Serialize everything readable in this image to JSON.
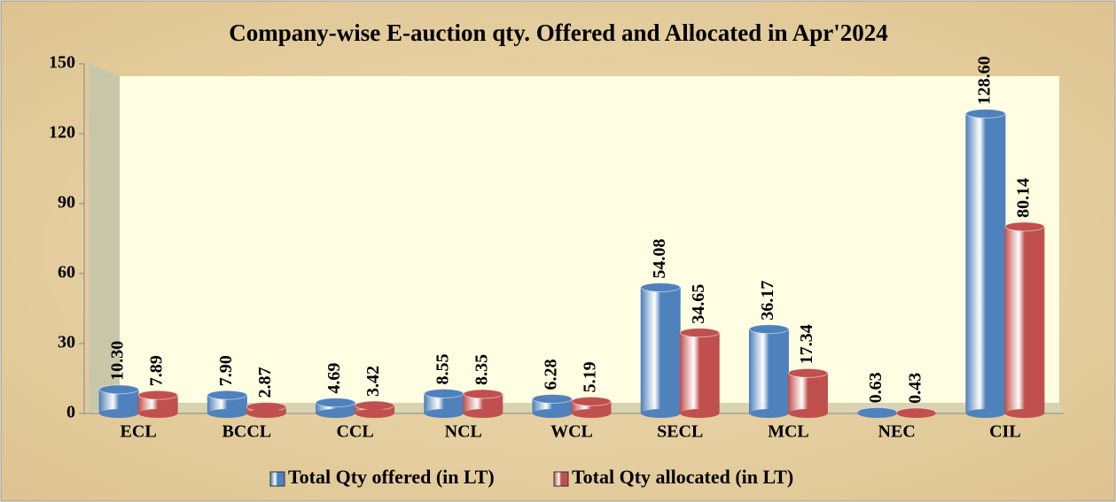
{
  "chart_data": {
    "type": "bar",
    "title": "Company-wise E-auction qty. Offered and Allocated in Apr'2024",
    "categories": [
      "ECL",
      "BCCL",
      "CCL",
      "NCL",
      "WCL",
      "SECL",
      "MCL",
      "NEC",
      "CIL"
    ],
    "series": [
      {
        "name": "Total Qty offered (in LT)",
        "color": "#4f81bd",
        "values": [
          10.3,
          7.9,
          4.69,
          8.55,
          6.28,
          54.08,
          36.17,
          0.63,
          128.6
        ],
        "value_labels": [
          "10.30",
          "7.90",
          "4.69",
          "8.55",
          "6.28",
          "54.08",
          "36.17",
          "0.63",
          "128.60"
        ]
      },
      {
        "name": "Total Qty allocated (in LT)",
        "color": "#c0504d",
        "values": [
          7.89,
          2.87,
          3.42,
          8.35,
          5.19,
          34.65,
          17.34,
          0.43,
          80.14
        ],
        "value_labels": [
          "7.89",
          "2.87",
          "3.42",
          "8.35",
          "5.19",
          "34.65",
          "17.34",
          "0.43",
          "80.14"
        ]
      }
    ],
    "ylim": [
      0,
      150
    ],
    "yticks": [
      0,
      30,
      60,
      90,
      120,
      150
    ],
    "legend": "bottom"
  }
}
